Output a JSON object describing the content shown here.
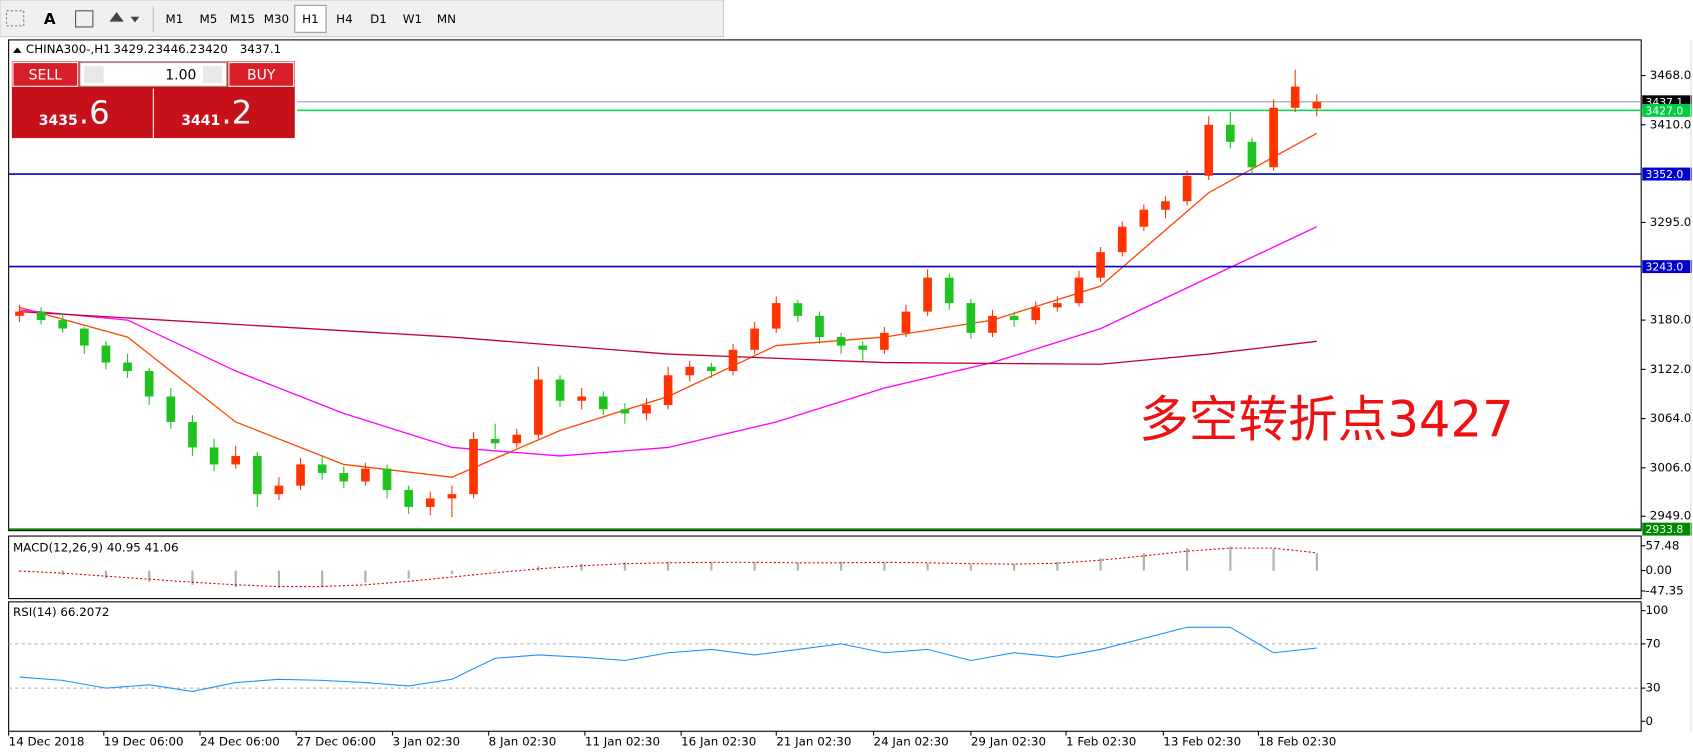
{
  "toolbar": {
    "text_tool": "A",
    "periods": [
      "M1",
      "M5",
      "M15",
      "M30",
      "H1",
      "H4",
      "D1",
      "W1",
      "MN"
    ],
    "active": "H1"
  },
  "trade_panel": {
    "sell": "SELL",
    "buy": "BUY",
    "lots": "1.00",
    "bid_main": "3435",
    "bid_big": ".6",
    "ask_main": "3441",
    "ask_big": ".2"
  },
  "chart_data": [
    {
      "type": "candlestick",
      "title": "CHINA300-,H1",
      "header_values": [
        3429.2,
        3446.2,
        3420.0,
        3437.1
      ],
      "up_color": "#ff3300",
      "down_color": "#1fc21f",
      "xlim": [
        -0.5,
        75
      ],
      "ylim": [
        2932,
        3510
      ],
      "xticks": [
        {
          "value": 0,
          "label": "14 Dec 2018"
        },
        {
          "value": 4.4,
          "label": "19 Dec 06:00"
        },
        {
          "value": 8.85,
          "label": "24 Dec 06:00"
        },
        {
          "value": 13.3,
          "label": "27 Dec 06:00"
        },
        {
          "value": 17.75,
          "label": "3 Jan 02:30"
        },
        {
          "value": 22.2,
          "label": "8 Jan 02:30"
        },
        {
          "value": 26.65,
          "label": "11 Jan 02:30"
        },
        {
          "value": 31.1,
          "label": "16 Jan 02:30"
        },
        {
          "value": 35.5,
          "label": "21 Jan 02:30"
        },
        {
          "value": 40,
          "label": "24 Jan 02:30"
        },
        {
          "value": 44.5,
          "label": "29 Jan 02:30"
        },
        {
          "value": 48.9,
          "label": "1 Feb 02:30"
        },
        {
          "value": 53.4,
          "label": "13 Feb 02:30"
        },
        {
          "value": 57.8,
          "label": "18 Feb 02:30"
        }
      ],
      "yticks": [
        {
          "value": 3468,
          "label": "3468.0"
        },
        {
          "value": 3410,
          "label": "3410.0"
        },
        {
          "value": 3295,
          "label": "3295.0"
        },
        {
          "value": 3180,
          "label": "3180.0"
        },
        {
          "value": 3122,
          "label": "3122.0"
        },
        {
          "value": 3064,
          "label": "3064.0"
        },
        {
          "value": 3006,
          "label": "3006.0"
        },
        {
          "value": 2949,
          "label": "2949.0"
        }
      ],
      "ohlc": [
        [
          3185,
          3198,
          3178,
          3190
        ],
        [
          3190,
          3195,
          3175,
          3180
        ],
        [
          3180,
          3188,
          3165,
          3170
        ],
        [
          3170,
          3172,
          3140,
          3150
        ],
        [
          3150,
          3155,
          3122,
          3130
        ],
        [
          3130,
          3140,
          3112,
          3120
        ],
        [
          3120,
          3124,
          3080,
          3090
        ],
        [
          3090,
          3100,
          3052,
          3060
        ],
        [
          3060,
          3068,
          3020,
          3030
        ],
        [
          3030,
          3040,
          3002,
          3010
        ],
        [
          3010,
          3032,
          3005,
          3020
        ],
        [
          3020,
          3025,
          2960,
          2975
        ],
        [
          2975,
          2995,
          2968,
          2985
        ],
        [
          2985,
          3018,
          2980,
          3010
        ],
        [
          3010,
          3020,
          2992,
          3000
        ],
        [
          3000,
          3008,
          2982,
          2990
        ],
        [
          2990,
          3012,
          2985,
          3005
        ],
        [
          3005,
          3010,
          2970,
          2980
        ],
        [
          2980,
          2985,
          2952,
          2960
        ],
        [
          2960,
          2978,
          2950,
          2970
        ],
        [
          2970,
          2985,
          2948,
          2975
        ],
        [
          2975,
          3048,
          2970,
          3040
        ],
        [
          3040,
          3058,
          3028,
          3035
        ],
        [
          3035,
          3052,
          3030,
          3045
        ],
        [
          3045,
          3125,
          3040,
          3110
        ],
        [
          3110,
          3115,
          3078,
          3085
        ],
        [
          3085,
          3100,
          3075,
          3090
        ],
        [
          3090,
          3096,
          3068,
          3075
        ],
        [
          3075,
          3082,
          3058,
          3070
        ],
        [
          3070,
          3088,
          3062,
          3080
        ],
        [
          3080,
          3125,
          3075,
          3115
        ],
        [
          3115,
          3132,
          3108,
          3125
        ],
        [
          3125,
          3130,
          3112,
          3120
        ],
        [
          3120,
          3152,
          3115,
          3145
        ],
        [
          3145,
          3178,
          3140,
          3170
        ],
        [
          3170,
          3208,
          3165,
          3200
        ],
        [
          3200,
          3204,
          3178,
          3185
        ],
        [
          3185,
          3190,
          3152,
          3160
        ],
        [
          3160,
          3165,
          3140,
          3150
        ],
        [
          3150,
          3155,
          3132,
          3145
        ],
        [
          3145,
          3172,
          3140,
          3165
        ],
        [
          3165,
          3198,
          3160,
          3190
        ],
        [
          3190,
          3240,
          3185,
          3230
        ],
        [
          3230,
          3235,
          3192,
          3200
        ],
        [
          3200,
          3205,
          3158,
          3165
        ],
        [
          3165,
          3192,
          3160,
          3185
        ],
        [
          3185,
          3190,
          3172,
          3180
        ],
        [
          3180,
          3202,
          3175,
          3195
        ],
        [
          3195,
          3208,
          3190,
          3200
        ],
        [
          3200,
          3238,
          3196,
          3230
        ],
        [
          3230,
          3266,
          3225,
          3260
        ],
        [
          3260,
          3296,
          3255,
          3290
        ],
        [
          3290,
          3316,
          3285,
          3310
        ],
        [
          3310,
          3326,
          3300,
          3320
        ],
        [
          3320,
          3356,
          3315,
          3350
        ],
        [
          3350,
          3420,
          3345,
          3410
        ],
        [
          3410,
          3425,
          3382,
          3390
        ],
        [
          3390,
          3395,
          3352,
          3360
        ],
        [
          3360,
          3440,
          3356,
          3430
        ],
        [
          3430,
          3475,
          3425,
          3455
        ],
        [
          3429.2,
          3446.2,
          3420.0,
          3437.1
        ]
      ],
      "moving_averages": [
        {
          "color": "#ff4500",
          "x": [
            0,
            5,
            10,
            15,
            20,
            25,
            30,
            35,
            40,
            45,
            50,
            55,
            60
          ],
          "values": [
            3195,
            3160,
            3060,
            3010,
            2995,
            3050,
            3090,
            3150,
            3160,
            3180,
            3220,
            3330,
            3400
          ]
        },
        {
          "color": "#ff00ff",
          "x": [
            0,
            5,
            10,
            15,
            20,
            25,
            30,
            35,
            40,
            45,
            50,
            55,
            60
          ],
          "values": [
            3192,
            3180,
            3120,
            3070,
            3030,
            3020,
            3030,
            3060,
            3100,
            3130,
            3170,
            3230,
            3290
          ]
        },
        {
          "color": "#c00030",
          "x": [
            0,
            10,
            20,
            30,
            40,
            50,
            55,
            60
          ],
          "values": [
            3190,
            3175,
            3160,
            3140,
            3130,
            3128,
            3140,
            3155
          ]
        }
      ],
      "levels": [
        {
          "value": 3437.1,
          "label": "3437.1",
          "color": "#a0a0a0",
          "label_bg": "#000000"
        },
        {
          "value": 3427.0,
          "label": "3427.0",
          "color": "#00dd44",
          "label_bg": "#00cc44"
        },
        {
          "value": 3352.0,
          "label": "3352.0",
          "color": "#0000cc",
          "label_bg": "#0000cc"
        },
        {
          "value": 3243.0,
          "label": "3243.0",
          "color": "#0000cc",
          "label_bg": "#0000cc"
        },
        {
          "value": 2933.8,
          "label": "2933.8",
          "color": "#008800",
          "label_bg": "#008800"
        }
      ],
      "annotation": "多空转折点3427",
      "annotation_color": "#ee1111"
    },
    {
      "type": "macd",
      "title": "MACD(12,26,9) 40.95 41.06",
      "ylim": [
        -65,
        80
      ],
      "yticks": [
        {
          "value": 57.48,
          "label": "57.48"
        },
        {
          "value": 0,
          "label": "0.00"
        },
        {
          "value": -47.35,
          "label": "-47.35"
        }
      ],
      "x": [
        0,
        2,
        4,
        6,
        8,
        10,
        12,
        14,
        16,
        18,
        20,
        22,
        24,
        26,
        28,
        30,
        32,
        34,
        36,
        38,
        40,
        42,
        44,
        46,
        48,
        50,
        52,
        54,
        56,
        58,
        60
      ],
      "histogram": [
        -3,
        -10,
        -18,
        -26,
        -33,
        -38,
        -40,
        -36,
        -28,
        -18,
        -8,
        2,
        10,
        16,
        19,
        20,
        20,
        19,
        18,
        20,
        20,
        17,
        14,
        15,
        20,
        29,
        40,
        52,
        56,
        50,
        40.95
      ],
      "signal": [
        -1,
        -6,
        -13,
        -20,
        -27,
        -33,
        -37,
        -37,
        -33,
        -25,
        -15,
        -5,
        4,
        11,
        16,
        18,
        19,
        19,
        18,
        18,
        19,
        18,
        16,
        15,
        17,
        24,
        34,
        45,
        52,
        52,
        41.06
      ],
      "hist_color": "#b0b0b0",
      "signal_color": "#dd0000"
    },
    {
      "type": "line",
      "title": "RSI(14) 66.2072",
      "ylim": [
        -9,
        108
      ],
      "yticks": [
        100,
        70,
        30,
        0
      ],
      "levels": [
        70,
        30
      ],
      "x": [
        0,
        2,
        4,
        6,
        8,
        10,
        12,
        14,
        16,
        18,
        20,
        22,
        24,
        26,
        28,
        30,
        32,
        34,
        36,
        38,
        40,
        42,
        44,
        46,
        48,
        50,
        52,
        54,
        56,
        58,
        60
      ],
      "values": [
        40,
        37,
        30,
        33,
        27,
        35,
        38,
        37,
        35,
        32,
        38,
        57,
        60,
        58,
        55,
        62,
        65,
        60,
        65,
        70,
        62,
        65,
        55,
        62,
        58,
        65,
        75,
        85,
        85,
        62,
        66.2072
      ],
      "color": "#1e90ff"
    }
  ]
}
